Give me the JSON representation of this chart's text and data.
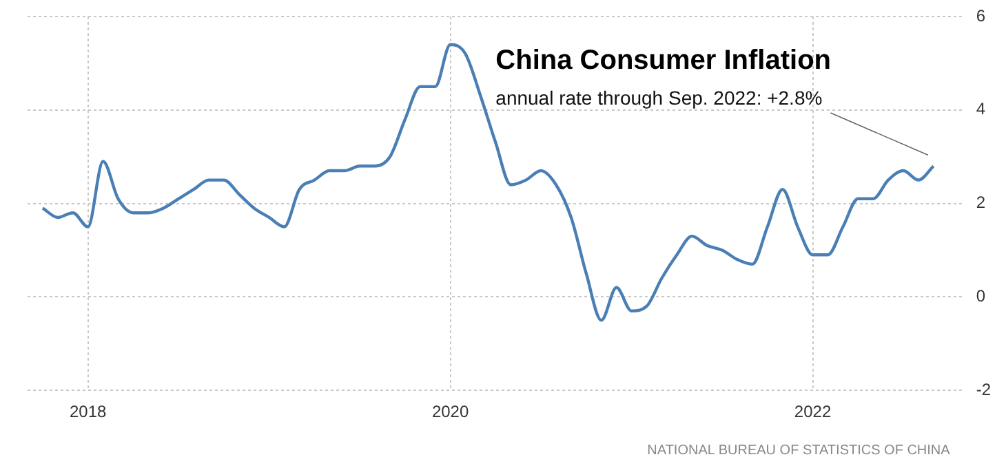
{
  "chart_data": {
    "type": "line",
    "title": "China Consumer Inflation",
    "subtitle": "annual rate through Sep. 2022: +2.8%",
    "annotations": [
      "NATIONAL BUREAU OF STATISTICS OF CHINA"
    ],
    "x": [
      "2017-10",
      "2017-11",
      "2017-12",
      "2018-01",
      "2018-02",
      "2018-03",
      "2018-04",
      "2018-05",
      "2018-06",
      "2018-07",
      "2018-08",
      "2018-09",
      "2018-10",
      "2018-11",
      "2018-12",
      "2019-01",
      "2019-02",
      "2019-03",
      "2019-04",
      "2019-05",
      "2019-06",
      "2019-07",
      "2019-08",
      "2019-09",
      "2019-10",
      "2019-11",
      "2019-12",
      "2020-01",
      "2020-02",
      "2020-03",
      "2020-04",
      "2020-05",
      "2020-06",
      "2020-07",
      "2020-08",
      "2020-09",
      "2020-10",
      "2020-11",
      "2020-12",
      "2021-01",
      "2021-02",
      "2021-03",
      "2021-04",
      "2021-05",
      "2021-06",
      "2021-07",
      "2021-08",
      "2021-09",
      "2021-10",
      "2021-11",
      "2021-12",
      "2022-01",
      "2022-02",
      "2022-03",
      "2022-04",
      "2022-05",
      "2022-06",
      "2022-07",
      "2022-08",
      "2022-09"
    ],
    "series": [
      {
        "color": "#4a7fb5",
        "values": [
          1.9,
          1.7,
          1.8,
          1.5,
          2.9,
          2.1,
          1.8,
          1.8,
          1.9,
          2.1,
          2.3,
          2.5,
          2.5,
          2.2,
          1.9,
          1.7,
          1.5,
          2.3,
          2.5,
          2.7,
          2.7,
          2.8,
          2.8,
          3.0,
          3.8,
          4.5,
          4.5,
          5.4,
          5.2,
          4.3,
          3.3,
          2.4,
          2.5,
          2.7,
          2.4,
          1.7,
          0.5,
          -0.5,
          0.2,
          -0.3,
          -0.2,
          0.4,
          0.9,
          1.3,
          1.1,
          1.0,
          0.8,
          0.7,
          1.5,
          2.3,
          1.5,
          0.9,
          0.9,
          1.5,
          2.1,
          2.1,
          2.5,
          2.7,
          2.5,
          2.8
        ]
      }
    ],
    "xlim": [
      "2017-09",
      "2022-11"
    ],
    "xticks": [
      "2018",
      "2020",
      "2022"
    ],
    "ylim": [
      -2,
      6
    ],
    "yticks": [
      -2,
      0,
      2,
      4,
      6
    ],
    "grid": true,
    "legend": false
  }
}
